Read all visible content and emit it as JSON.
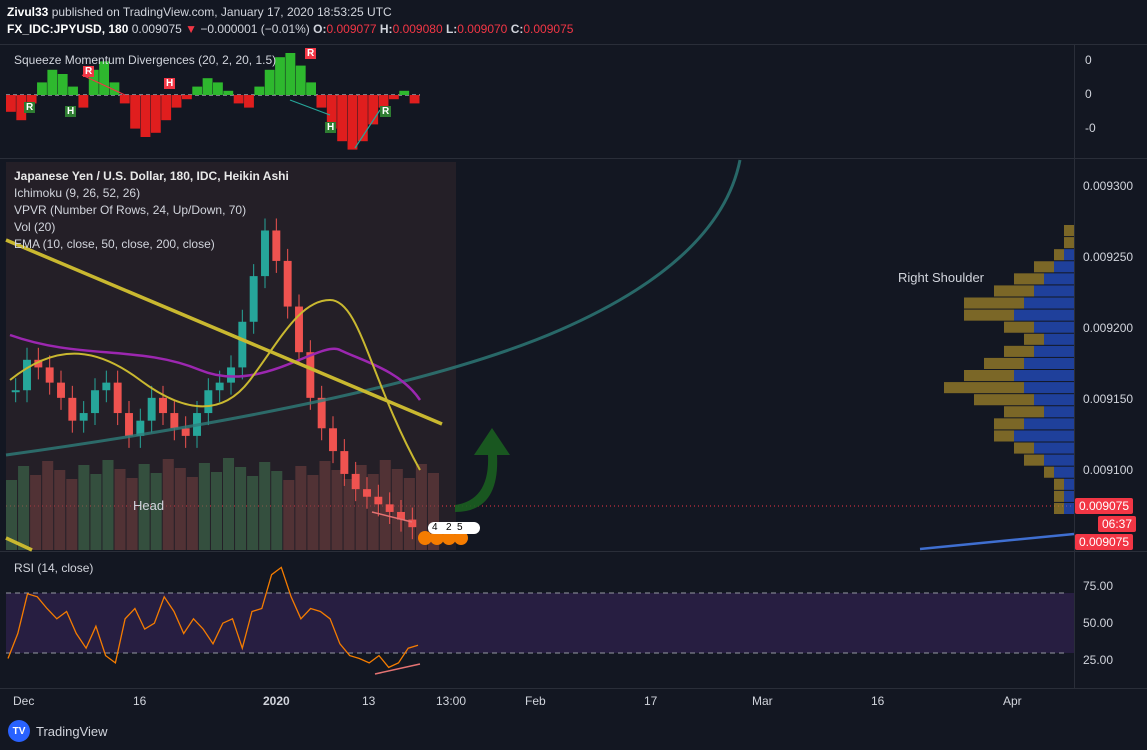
{
  "header": {
    "author": "Zivul33",
    "published_text": " published on TradingView.com, January 17, 2020 18:53:25 UTC",
    "symbol": "FX_IDC:JPYUSD, 180",
    "last": "0.009075",
    "change": "−0.000001 (−0.01%)",
    "o_label": "O:",
    "o": "0.009077",
    "h_label": "H:",
    "h": "0.009080",
    "l_label": "L:",
    "l": "0.009070",
    "c_label": "C:",
    "c": "0.009075"
  },
  "squeeze_pane": {
    "title": "Squeeze Momentum Divergences (20, 2, 20, 1.5)",
    "axis": [
      "0",
      "0",
      "-0"
    ],
    "markers_r": "R",
    "markers_h": "H"
  },
  "main_pane": {
    "title": "Japanese Yen / U.S. Dollar, 180, IDC, Heikin Ashi",
    "studies": [
      "Ichimoku (9, 26, 52, 26)",
      "VPVR (Number Of Rows, 24, Up/Down, 70)",
      "Vol (20)",
      "EMA (10, close, 50, close, 200, close)"
    ],
    "annotations": {
      "right_shoulder": "Right Shoulder",
      "head": "Head"
    },
    "axis": [
      "0.009300",
      "0.009250",
      "0.009200",
      "0.009150",
      "0.009100"
    ],
    "price_tag_1": "0.009075",
    "countdown": "06:37",
    "price_tag_2": "0.009075",
    "event_labels": [
      "4",
      "2",
      "5"
    ]
  },
  "rsi_pane": {
    "title": "RSI (14, close)",
    "axis": [
      "75.00",
      "50.00",
      "25.00"
    ]
  },
  "time_axis": [
    "Dec",
    "16",
    "2020",
    "13",
    "13:00",
    "Feb",
    "17",
    "Mar",
    "16",
    "Apr"
  ],
  "footer": {
    "brand": "TradingView"
  },
  "colors": {
    "background": "#131722",
    "up": "#26a69a",
    "down": "#ef5350",
    "trendline": "#c9b830",
    "rsi": "#f57c00",
    "arc": "#2e7d7a",
    "vp_up": "#2962ff",
    "vp_down": "#a88a2a",
    "arrow": "#1b5e20"
  },
  "chart_data": [
    {
      "type": "bar",
      "name": "Squeeze Momentum histogram",
      "values": [
        -0.4,
        -0.6,
        -0.2,
        0.3,
        0.6,
        0.5,
        0.2,
        -0.3,
        0.6,
        0.8,
        0.3,
        -0.2,
        -0.8,
        -1.0,
        -0.9,
        -0.6,
        -0.3,
        -0.1,
        0.2,
        0.4,
        0.3,
        0.1,
        -0.2,
        -0.3,
        0.2,
        0.6,
        0.9,
        1.0,
        0.7,
        0.3,
        -0.3,
        -0.8,
        -1.1,
        -1.3,
        -1.1,
        -0.7,
        -0.3,
        -0.1,
        0.1,
        -0.2
      ]
    },
    {
      "type": "line",
      "name": "Heikin Ashi close (approx.)",
      "ylim": [
        0.00906,
        0.009315
      ],
      "values": [
        0.009165,
        0.009185,
        0.00918,
        0.00917,
        0.00916,
        0.009145,
        0.00915,
        0.009165,
        0.00917,
        0.00915,
        0.009135,
        0.009145,
        0.00916,
        0.00915,
        0.00914,
        0.009135,
        0.00915,
        0.009165,
        0.00917,
        0.00918,
        0.00921,
        0.00924,
        0.00927,
        0.00925,
        0.00922,
        0.00919,
        0.00916,
        0.00914,
        0.009125,
        0.00911,
        0.0091,
        0.009095,
        0.00909,
        0.009085,
        0.00908,
        0.009075
      ]
    },
    {
      "type": "line",
      "name": "RSI (14, close)",
      "ylim": [
        10,
        95
      ],
      "values": [
        28,
        45,
        72,
        70,
        62,
        55,
        60,
        45,
        35,
        50,
        30,
        25,
        55,
        62,
        48,
        52,
        70,
        60,
        45,
        55,
        48,
        38,
        52,
        55,
        35,
        60,
        62,
        85,
        90,
        70,
        55,
        62,
        60,
        55,
        38,
        30,
        28,
        25,
        30,
        22,
        25,
        35,
        37
      ]
    },
    {
      "type": "bar",
      "name": "VPVR (Up/Down)",
      "up": [
        0,
        0,
        1,
        2,
        3,
        4,
        5,
        6,
        4,
        3,
        4,
        5,
        6,
        5,
        4,
        3,
        5,
        6,
        4,
        3,
        2,
        1,
        1,
        1
      ],
      "down": [
        1,
        1,
        1,
        2,
        3,
        4,
        6,
        5,
        3,
        2,
        3,
        4,
        5,
        8,
        6,
        4,
        3,
        2,
        2,
        2,
        1,
        1,
        1,
        1
      ]
    }
  ]
}
